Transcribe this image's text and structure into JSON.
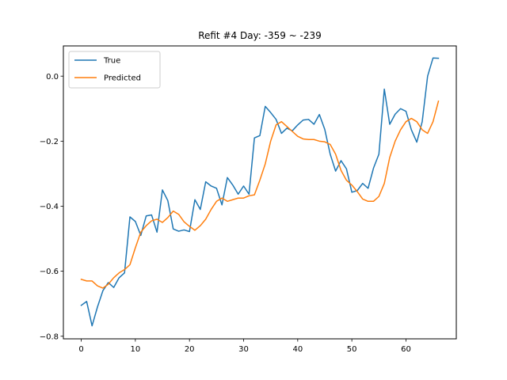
{
  "chart_data": {
    "type": "line",
    "title": "Refit #4 Day: -359 ~ -239",
    "xlabel": "",
    "ylabel": "",
    "xlim": [
      -3.3,
      69.3
    ],
    "ylim": [
      -0.808,
      0.093
    ],
    "xticks": [
      0,
      10,
      20,
      30,
      40,
      50,
      60
    ],
    "yticks": [
      -0.8,
      -0.6,
      -0.4,
      -0.2,
      0.0
    ],
    "ytick_labels": [
      "−0.8",
      "−0.6",
      "−0.4",
      "−0.2",
      "0.0"
    ],
    "grid": false,
    "legend_position": "top-left",
    "series": [
      {
        "name": "True",
        "color": "#1f77b4",
        "x": [
          0,
          1,
          2,
          3,
          4,
          5,
          6,
          7,
          8,
          9,
          10,
          11,
          12,
          13,
          14,
          15,
          16,
          17,
          18,
          19,
          20,
          21,
          22,
          23,
          24,
          25,
          26,
          27,
          28,
          29,
          30,
          31,
          32,
          33,
          34,
          35,
          36,
          37,
          38,
          39,
          40,
          41,
          42,
          43,
          44,
          45,
          46,
          47,
          48,
          49,
          50,
          51,
          52,
          53,
          54,
          55,
          56,
          57,
          58,
          59,
          60,
          61,
          62,
          63,
          64,
          65,
          66
        ],
        "values": [
          -0.705,
          -0.693,
          -0.768,
          -0.71,
          -0.66,
          -0.635,
          -0.65,
          -0.62,
          -0.605,
          -0.433,
          -0.447,
          -0.49,
          -0.43,
          -0.427,
          -0.48,
          -0.35,
          -0.383,
          -0.47,
          -0.477,
          -0.473,
          -0.478,
          -0.38,
          -0.41,
          -0.325,
          -0.338,
          -0.345,
          -0.396,
          -0.312,
          -0.335,
          -0.363,
          -0.338,
          -0.363,
          -0.19,
          -0.183,
          -0.093,
          -0.112,
          -0.133,
          -0.176,
          -0.16,
          -0.168,
          -0.15,
          -0.135,
          -0.133,
          -0.148,
          -0.118,
          -0.164,
          -0.24,
          -0.292,
          -0.26,
          -0.285,
          -0.357,
          -0.352,
          -0.33,
          -0.345,
          -0.283,
          -0.24,
          -0.04,
          -0.148,
          -0.117,
          -0.1,
          -0.108,
          -0.165,
          -0.203,
          -0.14,
          0.0,
          0.056,
          0.055
        ]
      },
      {
        "name": "Predicted",
        "color": "#ff7f0e",
        "x": [
          0,
          1,
          2,
          3,
          4,
          5,
          6,
          7,
          8,
          9,
          10,
          11,
          12,
          13,
          14,
          15,
          16,
          17,
          18,
          19,
          20,
          21,
          22,
          23,
          24,
          25,
          26,
          27,
          28,
          29,
          30,
          31,
          32,
          33,
          34,
          35,
          36,
          37,
          38,
          39,
          40,
          41,
          42,
          43,
          44,
          45,
          46,
          47,
          48,
          49,
          50,
          51,
          52,
          53,
          54,
          55,
          56,
          57,
          58,
          59,
          60,
          61,
          62,
          63,
          64,
          65,
          66
        ],
        "values": [
          -0.625,
          -0.63,
          -0.63,
          -0.645,
          -0.652,
          -0.64,
          -0.62,
          -0.605,
          -0.595,
          -0.58,
          -0.528,
          -0.48,
          -0.46,
          -0.445,
          -0.44,
          -0.45,
          -0.435,
          -0.415,
          -0.425,
          -0.448,
          -0.462,
          -0.474,
          -0.46,
          -0.44,
          -0.41,
          -0.385,
          -0.375,
          -0.385,
          -0.38,
          -0.375,
          -0.375,
          -0.368,
          -0.365,
          -0.32,
          -0.27,
          -0.2,
          -0.15,
          -0.14,
          -0.155,
          -0.17,
          -0.185,
          -0.193,
          -0.195,
          -0.195,
          -0.2,
          -0.202,
          -0.21,
          -0.24,
          -0.29,
          -0.32,
          -0.335,
          -0.355,
          -0.378,
          -0.385,
          -0.385,
          -0.37,
          -0.33,
          -0.25,
          -0.2,
          -0.165,
          -0.14,
          -0.13,
          -0.14,
          -0.165,
          -0.176,
          -0.14,
          -0.077
        ]
      }
    ]
  }
}
